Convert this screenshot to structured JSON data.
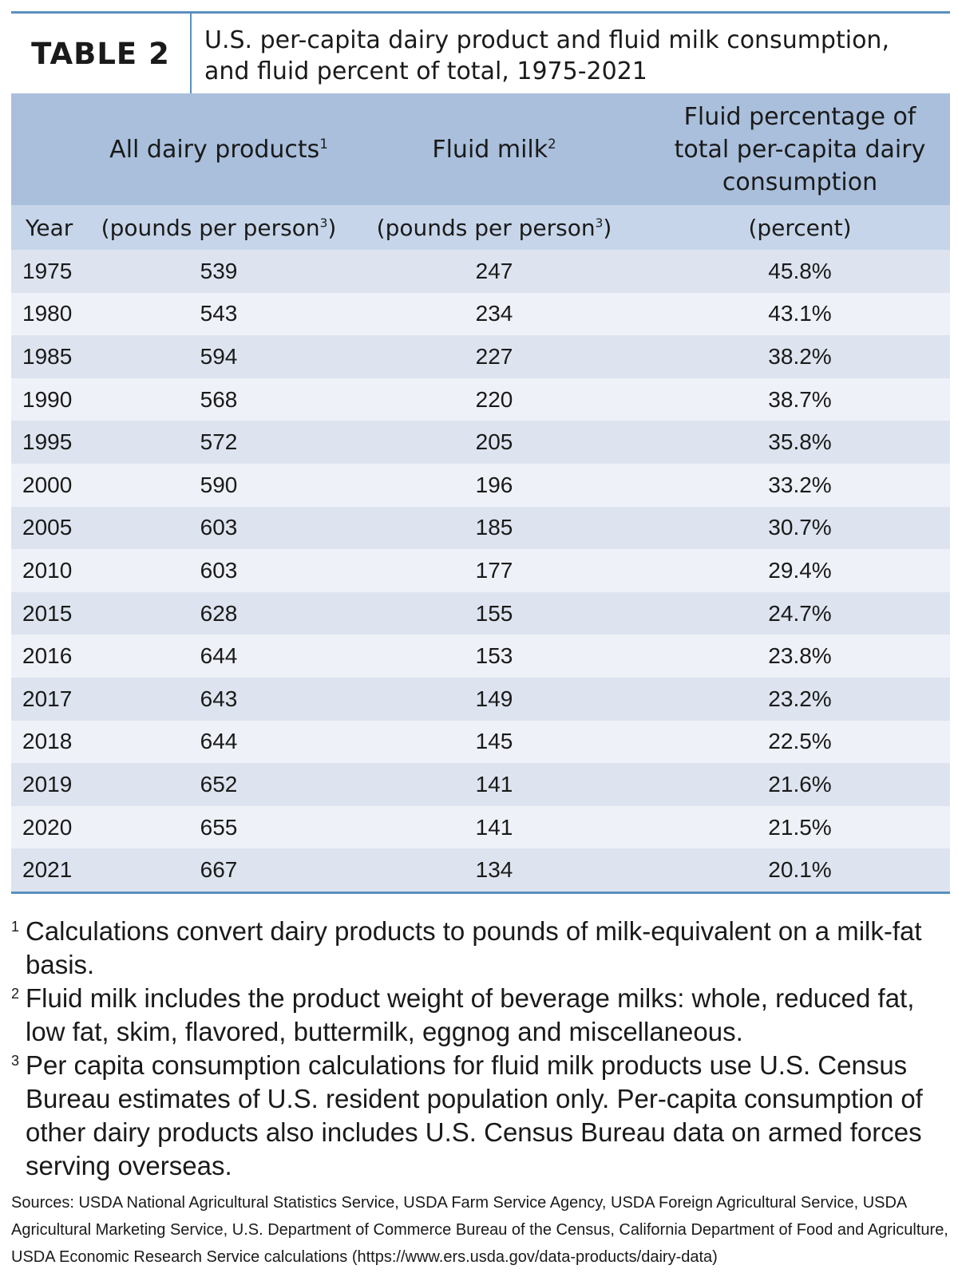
{
  "table_label": "TABLE 2",
  "title_line1": "U.S. per-capita dairy product and fluid milk consumption,",
  "title_line2": "and fluid percent of total, 1975-2021",
  "columns": {
    "all_dairy": "All dairy products",
    "all_dairy_mark": "1",
    "fluid_milk": "Fluid milk",
    "fluid_milk_mark": "2",
    "fluid_pct_l1": "Fluid percentage of",
    "fluid_pct_l2": "total per-capita dairy",
    "fluid_pct_l3": "consumption"
  },
  "units": {
    "year": "Year",
    "all_dairy": "(pounds per person",
    "all_dairy_mark": "3",
    "all_dairy_close": ")",
    "fluid_milk": "(pounds per person",
    "fluid_milk_mark": "3",
    "fluid_milk_close": ")",
    "fluid_pct": "(percent)"
  },
  "rows": [
    [
      "1975",
      "539",
      "247",
      "45.8%"
    ],
    [
      "1980",
      "543",
      "234",
      "43.1%"
    ],
    [
      "1985",
      "594",
      "227",
      "38.2%"
    ],
    [
      "1990",
      "568",
      "220",
      "38.7%"
    ],
    [
      "1995",
      "572",
      "205",
      "35.8%"
    ],
    [
      "2000",
      "590",
      "196",
      "33.2%"
    ],
    [
      "2005",
      "603",
      "185",
      "30.7%"
    ],
    [
      "2010",
      "603",
      "177",
      "29.4%"
    ],
    [
      "2015",
      "628",
      "155",
      "24.7%"
    ],
    [
      "2016",
      "644",
      "153",
      "23.8%"
    ],
    [
      "2017",
      "643",
      "149",
      "23.2%"
    ],
    [
      "2018",
      "644",
      "145",
      "22.5%"
    ],
    [
      "2019",
      "652",
      "141",
      "21.6%"
    ],
    [
      "2020",
      "655",
      "141",
      "21.5%"
    ],
    [
      "2021",
      "667",
      "134",
      "20.1%"
    ]
  ],
  "footnotes": [
    {
      "mark": "1",
      "text": "Calculations convert dairy products to pounds of milk-equivalent on a milk-fat basis."
    },
    {
      "mark": "2",
      "text": "Fluid milk includes the product weight of beverage milks: whole, reduced fat, low fat, skim, flavored, buttermilk, eggnog and miscellaneous."
    },
    {
      "mark": "3",
      "text": "Per capita consumption calculations for fluid milk products use U.S. Census Bureau estimates of U.S. resident population only. Per-capita consumption of other dairy products also includes U.S. Census Bureau data on armed forces serving overseas."
    }
  ],
  "sources": "Sources: USDA National Agricultural Statistics Service, USDA Farm Service Agency, USDA Foreign Agricultural Service, USDA Agricultural Marketing Service, U.S. Department of Commerce Bureau of the Census, California Department of Food and Agriculture, USDA Economic Research Service calculations (https://www.ers.usda.gov/data-products/dairy-data)"
}
